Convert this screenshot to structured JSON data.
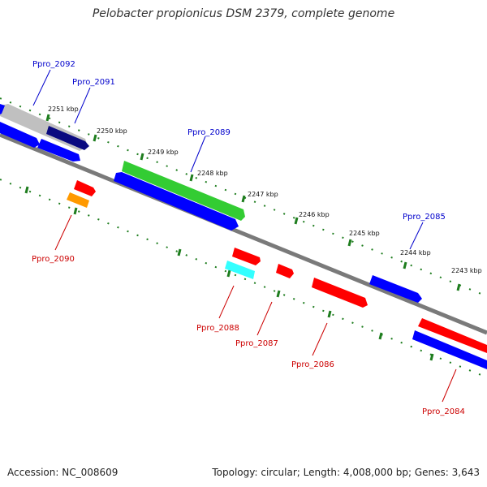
{
  "title": "Pelobacter propionicus DSM 2379, complete genome",
  "footer": {
    "accession": "Accession: NC_008609",
    "summary": "Topology: circular; Length: 4,008,000 bp; Genes: 3,643"
  },
  "ticks": [
    "2251 kbp",
    "2250 kbp",
    "2249 kbp",
    "2248 kbp",
    "2247 kbp",
    "2246 kbp",
    "2245 kbp",
    "2244 kbp",
    "2243 kbp"
  ],
  "colors": {
    "forward_cds": "#0000ff",
    "reverse_cds": "#ff0000",
    "backbone": "#808080",
    "tick_marks": "#1e7d1e",
    "forward_label": "#0000cc",
    "reverse_label": "#cc0000"
  },
  "genes": [
    {
      "name": "Ppro_2092",
      "color": "#c8c8c8"
    },
    {
      "name": "Ppro_2091",
      "color": "#0a0a80"
    },
    {
      "name": "Ppro_2090",
      "color": "#ff9900"
    },
    {
      "name": "Ppro_2089",
      "color": "#33cc33"
    },
    {
      "name": "Ppro_2088",
      "color": "#33ffff"
    },
    {
      "name": "Ppro_2087",
      "color": "#ff0000"
    },
    {
      "name": "Ppro_2086",
      "color": "#ff0000"
    },
    {
      "name": "Ppro_2085",
      "color": "#0000ff"
    },
    {
      "name": "Ppro_2084",
      "color": "#ff0000"
    }
  ]
}
